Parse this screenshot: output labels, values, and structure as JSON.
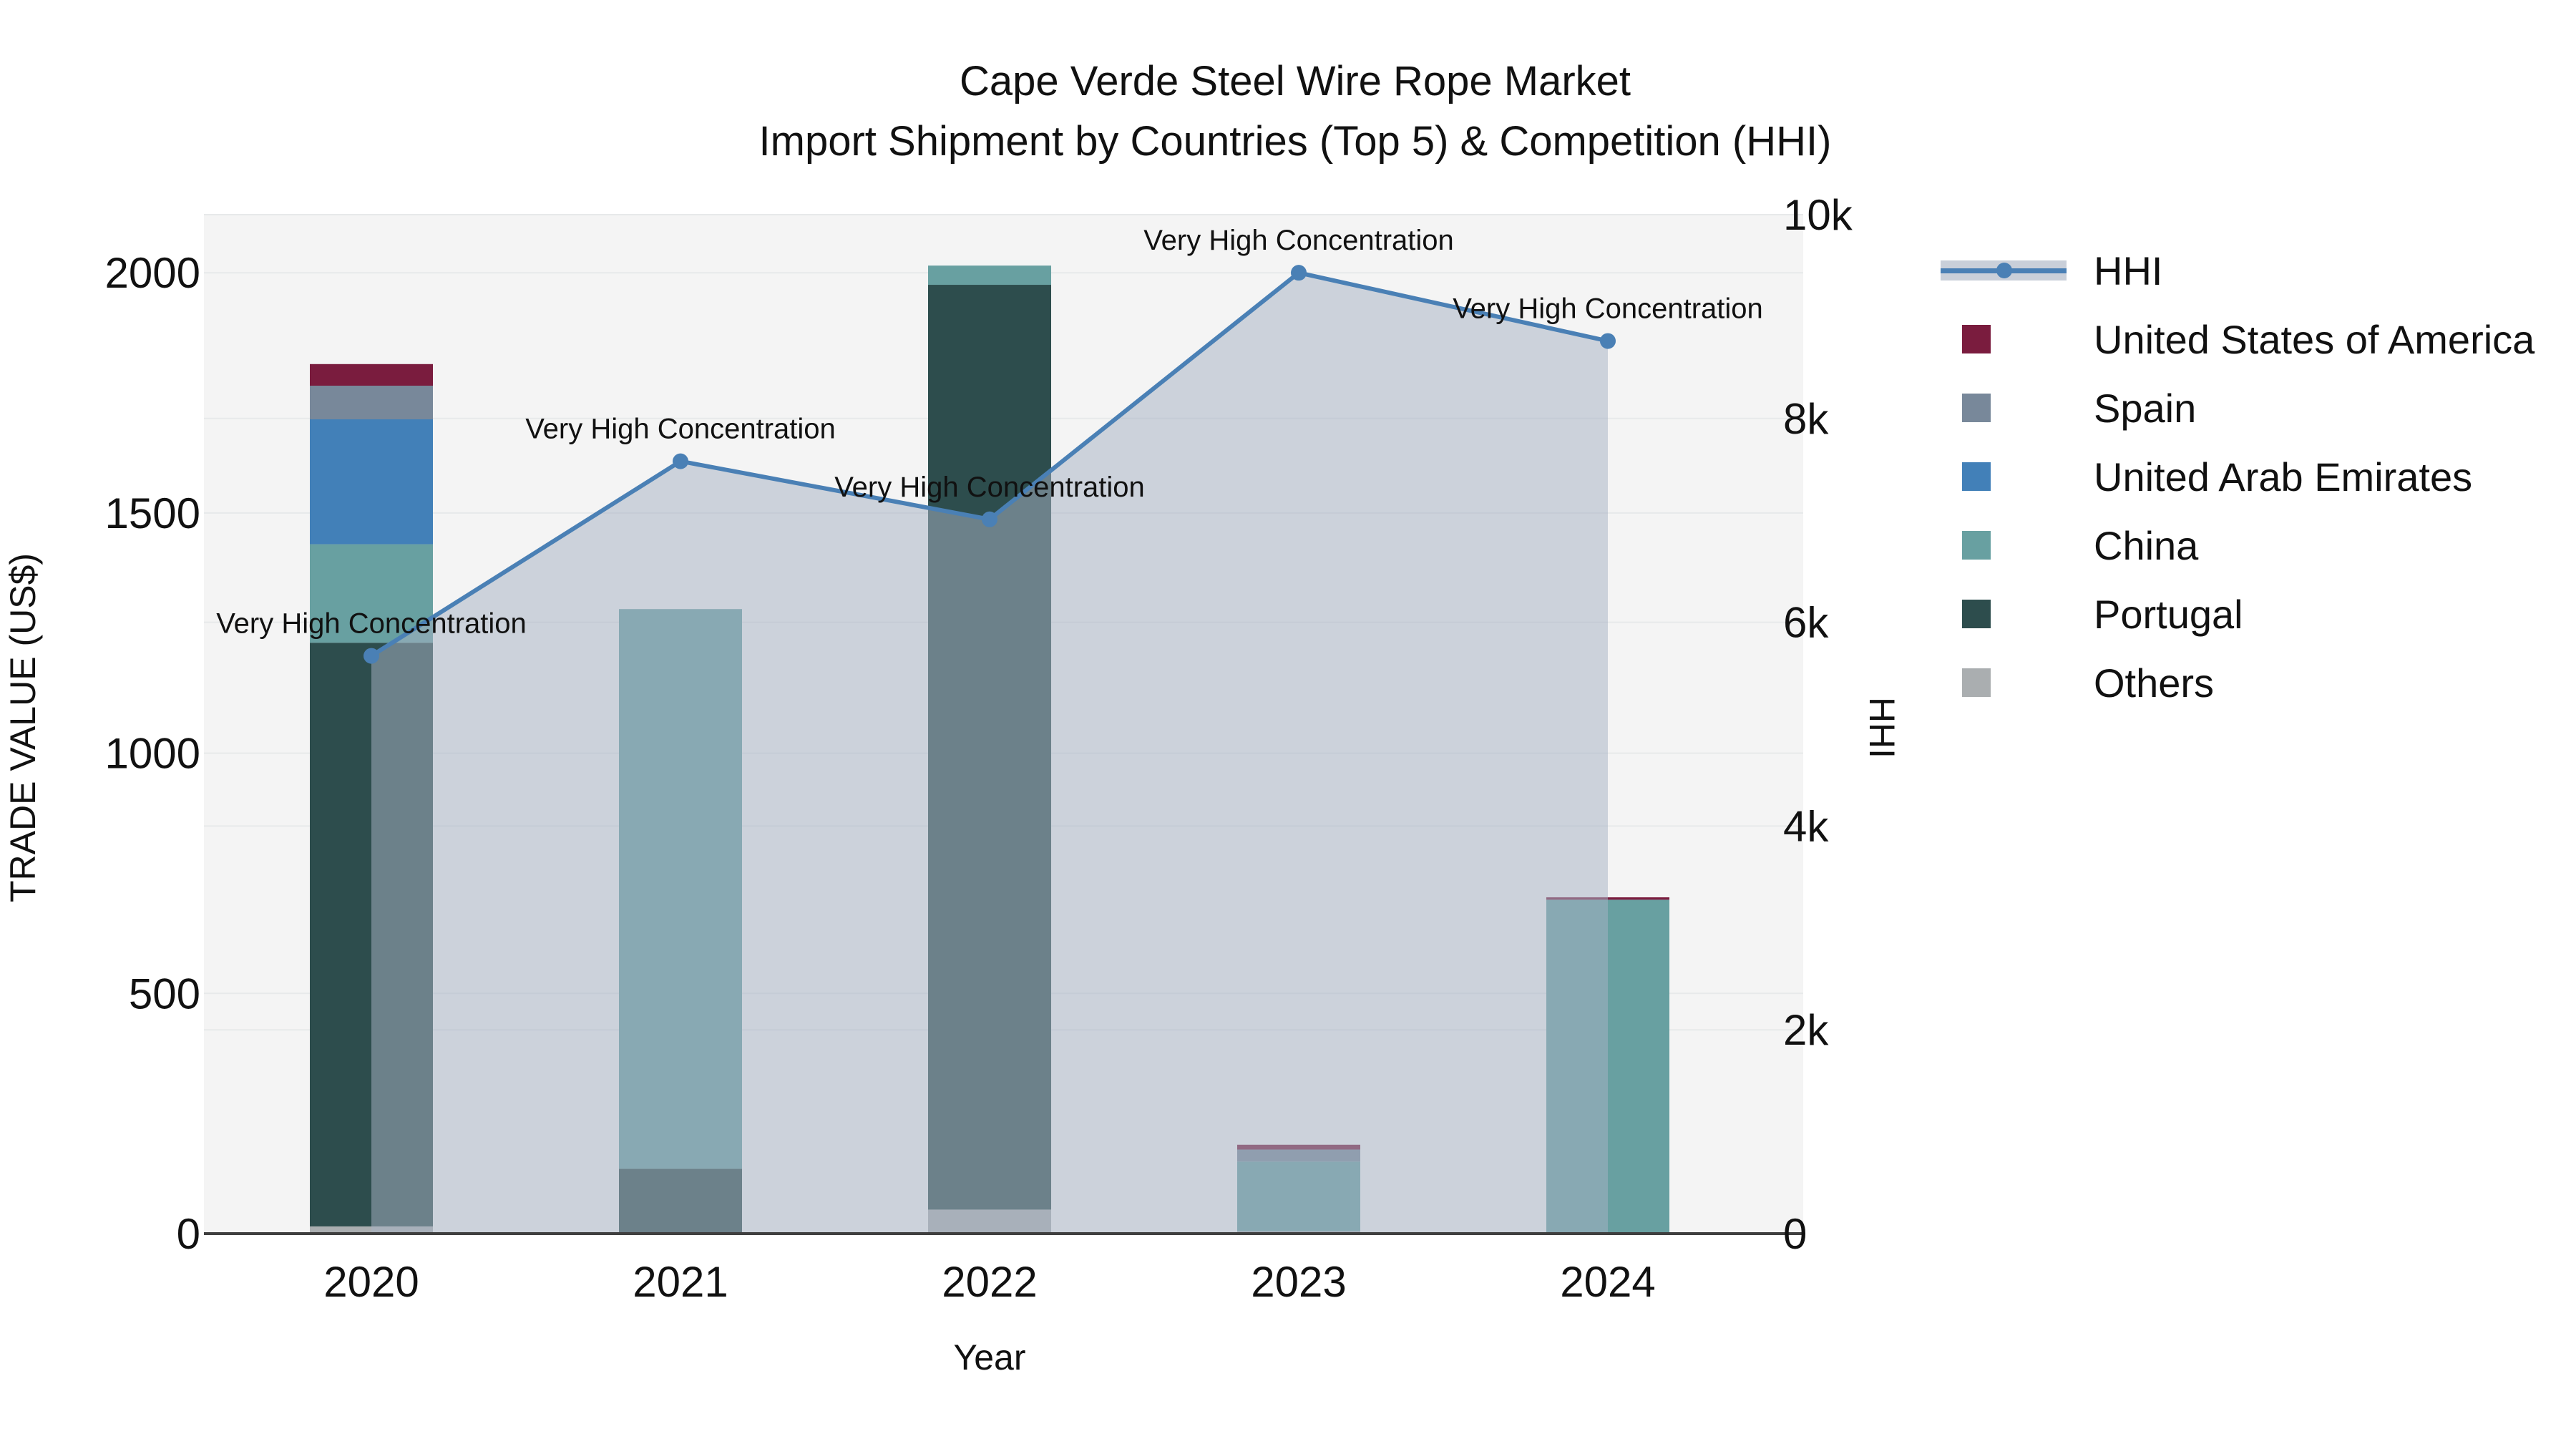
{
  "title": {
    "line1": "Cape Verde Steel Wire Rope Market",
    "line2": "Import Shipment by Countries (Top 5) & Competition (HHI)"
  },
  "axes": {
    "x": {
      "title": "Year",
      "tick_labels": [
        "2020",
        "2021",
        "2022",
        "2023",
        "2024"
      ]
    },
    "y_left": {
      "title": "TRADE VALUE (US$)",
      "tick_labels": [
        "0",
        "500",
        "1000",
        "1500",
        "2000"
      ],
      "tick_values": [
        0,
        500,
        1000,
        1500,
        2000
      ]
    },
    "y_right": {
      "title": "HHI",
      "tick_labels": [
        "0",
        "2k",
        "4k",
        "6k",
        "8k",
        "10k"
      ],
      "tick_values": [
        0,
        2000,
        4000,
        6000,
        8000,
        10000
      ]
    }
  },
  "legend": {
    "items": [
      {
        "label": "HHI",
        "type": "line",
        "color": "#4A80B5",
        "band_color": "#C9CFD9"
      },
      {
        "label": "United States of America",
        "type": "swatch",
        "color": "#7A1C3E"
      },
      {
        "label": "Spain",
        "type": "swatch",
        "color": "#78889A"
      },
      {
        "label": "United Arab Emirates",
        "type": "swatch",
        "color": "#4280B8"
      },
      {
        "label": "China",
        "type": "swatch",
        "color": "#68A0A1"
      },
      {
        "label": "Portugal",
        "type": "swatch",
        "color": "#2D4D4D"
      },
      {
        "label": "Others",
        "type": "swatch",
        "color": "#AAAEB0"
      }
    ]
  },
  "chart_data": {
    "type": "bar",
    "subtype": "stacked-bars-with-secondary-line-area",
    "title": "Cape Verde Steel Wire Rope Market — Import Shipment by Countries (Top 5) & Competition (HHI)",
    "xlabel": "Year",
    "ylabel_left": "TRADE VALUE (US$)",
    "ylabel_right": "HHI",
    "categories": [
      "2020",
      "2021",
      "2022",
      "2023",
      "2024"
    ],
    "series": [
      {
        "name": "Others",
        "color": "#AAAEB0",
        "values": [
          15,
          0,
          50,
          5,
          0
        ]
      },
      {
        "name": "Portugal",
        "color": "#2D4D4D",
        "values": [
          1215,
          135,
          1925,
          0,
          0
        ]
      },
      {
        "name": "China",
        "color": "#68A0A1",
        "values": [
          205,
          1165,
          40,
          145,
          695
        ]
      },
      {
        "name": "United Arab Emirates",
        "color": "#4280B8",
        "values": [
          260,
          0,
          0,
          0,
          0
        ]
      },
      {
        "name": "Spain",
        "color": "#78889A",
        "values": [
          70,
          0,
          0,
          25,
          0
        ]
      },
      {
        "name": "United States of America",
        "color": "#7A1C3E",
        "values": [
          45,
          0,
          0,
          10,
          5
        ]
      }
    ],
    "bar_totals": [
      1810,
      1300,
      2015,
      185,
      700
    ],
    "line_series": {
      "name": "HHI",
      "color": "#4A80B5",
      "area_fill": "rgba(167,179,196,0.52)",
      "values": [
        5670,
        7580,
        7010,
        9430,
        8760
      ]
    },
    "annotations": [
      "Very High Concentration",
      "Very High Concentration",
      "Very High Concentration",
      "Very High Concentration",
      "Very High Concentration"
    ],
    "ylim_left": [
      0,
      2121
    ],
    "ylim_right": [
      0,
      10000
    ],
    "grid": true,
    "plot_bg": "#F4F4F4",
    "grid_color": "#E7E9EA",
    "axis_line_color": "#3F3F3F",
    "legend_position": "right"
  }
}
